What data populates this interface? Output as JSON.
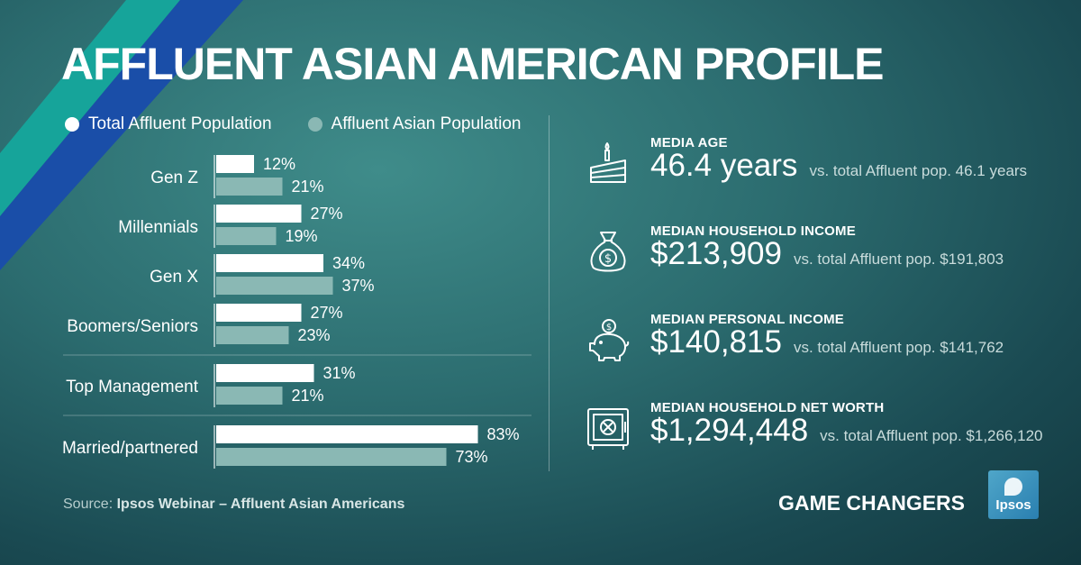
{
  "title": "AFFLUENT ASIAN AMERICAN PROFILE",
  "colors": {
    "total_bar": "#ffffff",
    "asian_bar": "#8ab8b4",
    "stripe_teal": "#16a49a",
    "stripe_blue": "#1a4ea8"
  },
  "legend": [
    {
      "label": "Total Affluent Population",
      "color": "#ffffff"
    },
    {
      "label": "Affluent Asian Population",
      "color": "#8ab8b4"
    }
  ],
  "chart_data": {
    "type": "bar",
    "orientation": "horizontal",
    "categories": [
      "Gen Z",
      "Millennials",
      "Gen X",
      "Boomers/Seniors",
      "Top Management",
      "Married/partnered"
    ],
    "series": [
      {
        "name": "Total Affluent Population",
        "values": [
          12,
          27,
          34,
          27,
          31,
          83
        ],
        "labels": [
          "12%",
          "27%",
          "34%",
          "27%",
          "31%",
          "83%"
        ]
      },
      {
        "name": "Affluent Asian Population",
        "values": [
          21,
          19,
          37,
          23,
          21,
          73
        ],
        "labels": [
          "21%",
          "19%",
          "37%",
          "23%",
          "21%",
          "73%"
        ]
      }
    ],
    "xlim": [
      0,
      100
    ],
    "legend_position": "top-left",
    "grid": false
  },
  "stats": [
    {
      "label": "MEDIA AGE",
      "value": "46.4 years",
      "compare": "vs. total Affluent pop. 46.1 years",
      "icon": "cake-icon"
    },
    {
      "label": "MEDIAN HOUSEHOLD INCOME",
      "value": "$213,909",
      "compare": "vs. total Affluent pop. $191,803",
      "icon": "money-bag-icon"
    },
    {
      "label": "MEDIAN PERSONAL INCOME",
      "value": "$140,815",
      "compare": "vs. total Affluent pop. $141,762",
      "icon": "piggy-bank-icon"
    },
    {
      "label": "MEDIAN HOUSEHOLD NET WORTH",
      "value": "$1,294,448",
      "compare": "vs. total Affluent pop. $1,266,120",
      "icon": "safe-icon"
    }
  ],
  "source": {
    "prefix": "Source: ",
    "text": "Ipsos Webinar – Affluent Asian Americans"
  },
  "brand": {
    "text": "GAME CHANGERS",
    "logo_text": "Ipsos"
  }
}
